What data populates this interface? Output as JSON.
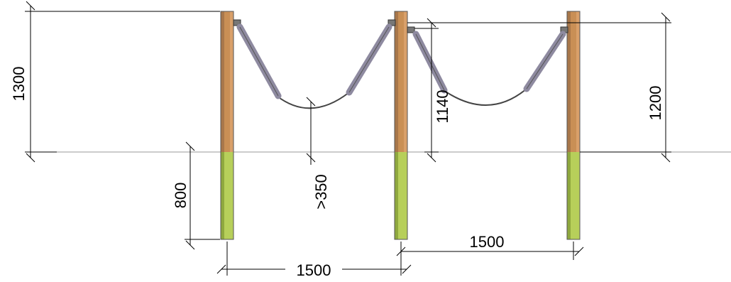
{
  "colors": {
    "post_above_ground": "#c98f55",
    "post_above_ground_shade": "#a8774a",
    "post_below_ground": "#b7cf5a",
    "post_below_ground_shade": "#8fa83e",
    "rope_sleeve": "#8e8aa0",
    "rope": "#444444",
    "dimension_line": "#000000",
    "ground_line": "#9a9a9a"
  },
  "dimensions": {
    "post_height_above_ground": "1300",
    "post_depth_below_ground": "800",
    "min_sag_clearance": ">350",
    "post_spacing_left": "1500",
    "post_spacing_right": "1500",
    "rope_attach_height_left": "1140",
    "rope_attach_height_right": "1200"
  },
  "posts": [
    {
      "id": "left-post"
    },
    {
      "id": "middle-post"
    },
    {
      "id": "right-post"
    }
  ],
  "ropes": [
    {
      "id": "left-span"
    },
    {
      "id": "right-span"
    }
  ]
}
